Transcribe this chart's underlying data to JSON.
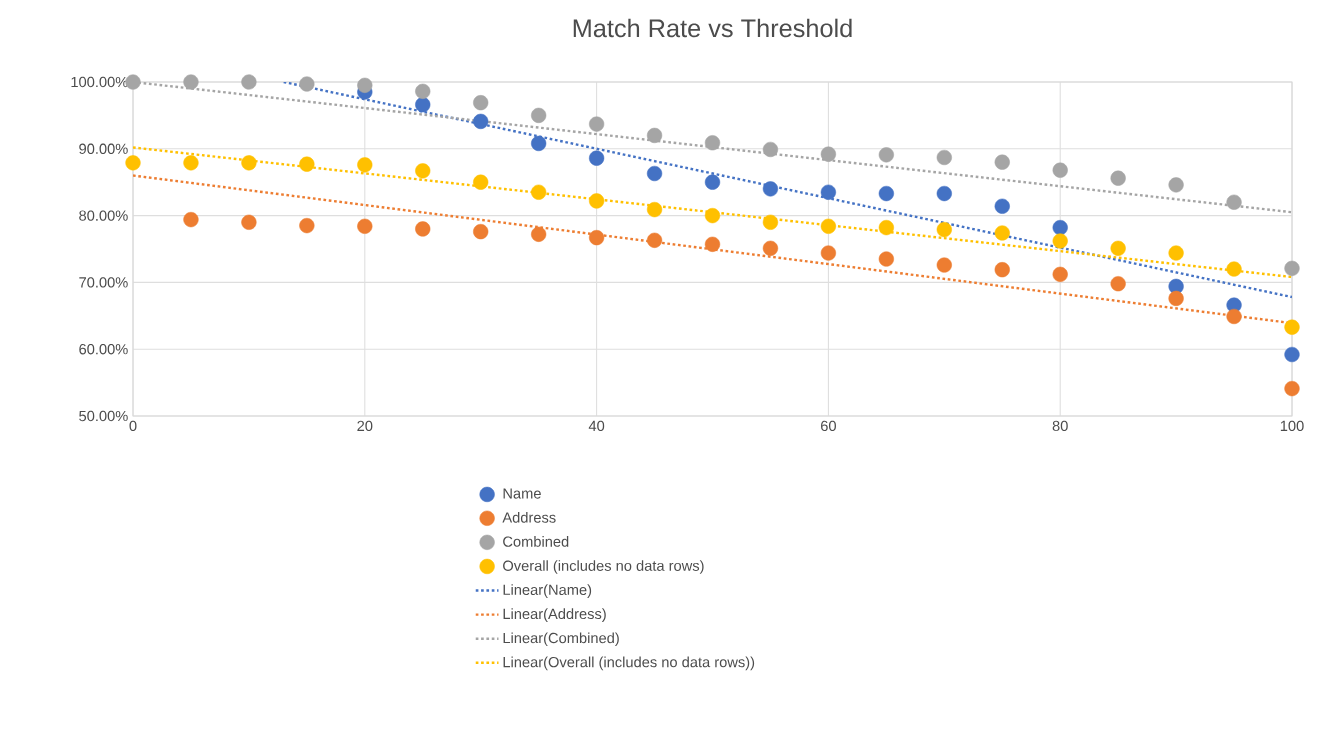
{
  "chart_data": {
    "type": "scatter",
    "title": "Match Rate vs Threshold",
    "x": [
      0,
      5,
      10,
      15,
      20,
      25,
      30,
      35,
      40,
      45,
      50,
      55,
      60,
      65,
      70,
      75,
      80,
      85,
      90,
      95,
      100
    ],
    "series": [
      {
        "name": "Name",
        "color": "#4472c4",
        "marker": "circle",
        "values": [
          null,
          null,
          null,
          null,
          98.5,
          96.6,
          94.1,
          90.8,
          88.6,
          86.3,
          85.0,
          84.0,
          83.5,
          83.3,
          83.3,
          81.4,
          78.2,
          null,
          69.4,
          66.6,
          59.2
        ]
      },
      {
        "name": "Address",
        "color": "#ed7d31",
        "marker": "circle",
        "values": [
          null,
          79.4,
          79.0,
          78.5,
          78.4,
          78.0,
          77.6,
          77.2,
          76.7,
          76.3,
          75.7,
          75.1,
          74.4,
          73.5,
          72.6,
          71.9,
          71.2,
          69.8,
          67.6,
          64.9,
          54.1
        ]
      },
      {
        "name": "Combined",
        "color": "#a5a5a5",
        "marker": "circle",
        "values": [
          100,
          100,
          100,
          99.7,
          99.5,
          98.6,
          96.9,
          95.0,
          93.7,
          92.0,
          90.9,
          89.9,
          89.2,
          89.1,
          88.7,
          88.0,
          86.8,
          85.6,
          84.6,
          82.0,
          72.1
        ]
      },
      {
        "name": "Overall (includes no data rows)",
        "color": "#ffc000",
        "marker": "circle",
        "values": [
          87.9,
          87.9,
          87.9,
          87.7,
          87.6,
          86.7,
          85.0,
          83.5,
          82.2,
          80.9,
          80.0,
          79.0,
          78.4,
          78.2,
          77.9,
          77.4,
          76.2,
          75.1,
          74.4,
          72.0,
          63.3
        ]
      },
      {
        "name": "Linear(Name)",
        "type": "line",
        "color": "#4472c4",
        "marker": "none",
        "x": [
          13,
          100
        ],
        "values": [
          100,
          67.8
        ]
      },
      {
        "name": "Linear(Address)",
        "type": "line",
        "color": "#ed7d31",
        "marker": "none",
        "x": [
          0,
          100
        ],
        "values": [
          86.0,
          63.9
        ]
      },
      {
        "name": "Linear(Combined)",
        "type": "line",
        "color": "#a5a5a5",
        "marker": "none",
        "x": [
          0,
          100
        ],
        "values": [
          100,
          80.5
        ]
      },
      {
        "name": "Linear(Overall (includes no data rows))",
        "type": "line",
        "color": "#ffc000",
        "marker": "none",
        "x": [
          0,
          100
        ],
        "values": [
          90.2,
          70.8
        ]
      }
    ],
    "xlim": [
      0,
      100
    ],
    "xticks": [
      0,
      20,
      40,
      60,
      80,
      100
    ],
    "ylim": [
      50,
      100
    ],
    "yticks": [
      {
        "value": 50,
        "label": "50.00%"
      },
      {
        "value": 60,
        "label": "60.00%"
      },
      {
        "value": 70,
        "label": "70.00%"
      },
      {
        "value": 80,
        "label": "80.00%"
      },
      {
        "value": 90,
        "label": "90.00%"
      },
      {
        "value": 100,
        "label": "100.00%"
      }
    ],
    "grid": true,
    "legend": "bottom",
    "line_style": "dotted"
  }
}
